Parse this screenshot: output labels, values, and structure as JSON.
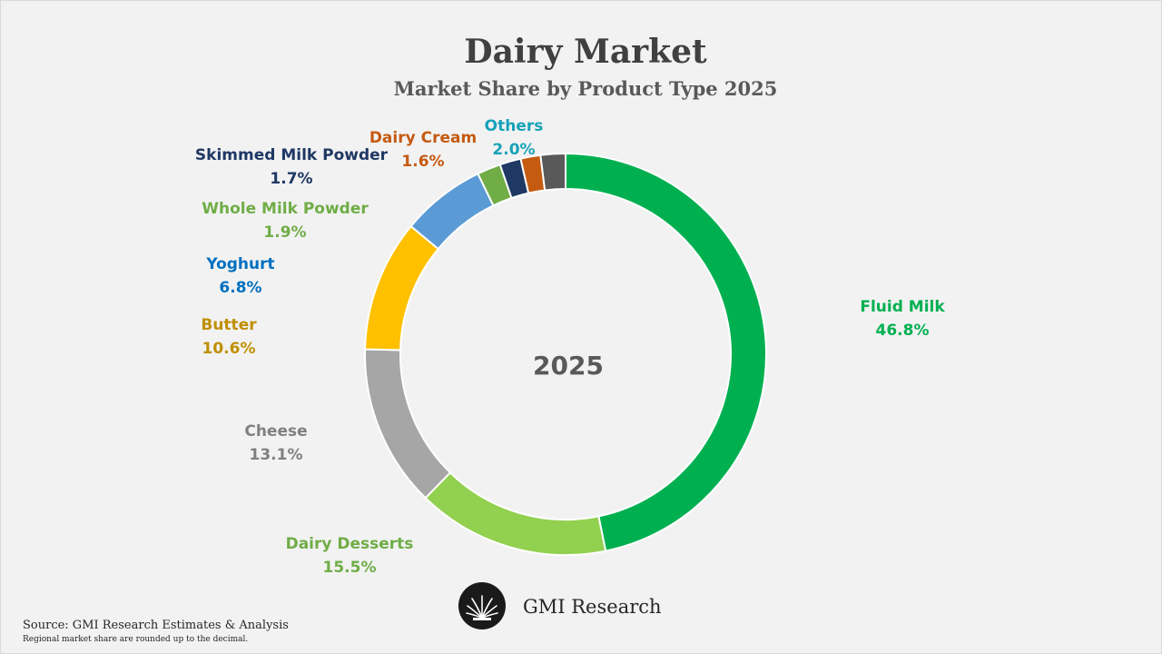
{
  "header": {
    "title": "Dairy Market",
    "subtitle": "Market Share by Product Type 2025"
  },
  "footer": {
    "source": "Source: GMI Research Estimates & Analysis",
    "note": "Regional market share are rounded up to the decimal.",
    "logo_text": "GMI Research"
  },
  "chart_data": {
    "type": "pie",
    "variant": "donut",
    "title": "Dairy Market",
    "subtitle": "Market Share by Product Type 2025",
    "center_label": "2025",
    "unit": "%",
    "slices": [
      {
        "label": "Fluid Milk",
        "value": 46.8,
        "display": "46.8%",
        "color": "#00b050"
      },
      {
        "label": "Dairy Desserts",
        "value": 15.5,
        "display": "15.5%",
        "color": "#92d050"
      },
      {
        "label": "Cheese",
        "value": 13.1,
        "display": "13.1%",
        "color": "#a6a6a6"
      },
      {
        "label": "Butter",
        "value": 10.6,
        "display": "10.6%",
        "color": "#ffc000"
      },
      {
        "label": "Yoghurt",
        "value": 6.8,
        "display": "6.8%",
        "color": "#5b9bd5"
      },
      {
        "label": "Whole Milk Powder",
        "value": 1.9,
        "display": "1.9%",
        "color": "#70ad47"
      },
      {
        "label": "Skimmed Milk Powder",
        "value": 1.7,
        "display": "1.7%",
        "color": "#1f3864"
      },
      {
        "label": "Dairy Cream",
        "value": 1.6,
        "display": "1.6%",
        "color": "#c55a11"
      },
      {
        "label": "Others",
        "value": 2.0,
        "display": "2.0%",
        "color": "#595959"
      }
    ],
    "label_colors": {
      "Fluid Milk": "#00b050",
      "Dairy Desserts": "#70ad47",
      "Cheese": "#808080",
      "Butter": "#bf8f00",
      "Yoghurt": "#0070c0",
      "Whole Milk Powder": "#70ad47",
      "Skimmed Milk Powder": "#1f3864",
      "Dairy Cream": "#c55a11",
      "Others": "#17a2b8"
    }
  }
}
